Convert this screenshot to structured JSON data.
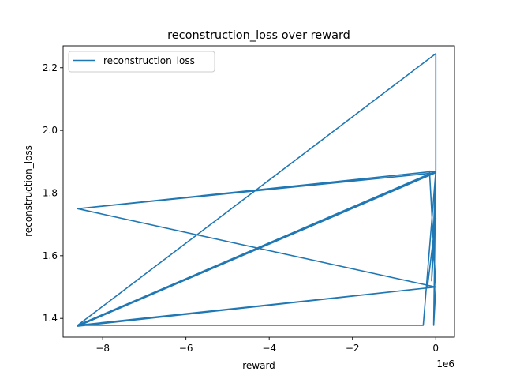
{
  "chart_data": {
    "type": "line",
    "title": "reconstruction_loss over reward",
    "xlabel": "reward",
    "ylabel": "reconstruction_loss",
    "x_offset_label": "1e6",
    "xlim": [
      -8.95,
      0.45
    ],
    "ylim": [
      1.34,
      2.27
    ],
    "xticks": [
      -8,
      -6,
      -4,
      -2,
      0
    ],
    "xtick_labels": [
      "−8",
      "−6",
      "−4",
      "−2",
      "0"
    ],
    "yticks": [
      1.4,
      1.6,
      1.8,
      2.0,
      2.2
    ],
    "ytick_labels": [
      "1.4",
      "1.6",
      "1.8",
      "2.0",
      "2.2"
    ],
    "legend": {
      "position": "top-left",
      "entries": [
        "reconstruction_loss"
      ]
    },
    "series": [
      {
        "name": "reconstruction_loss",
        "color": "#1f77b4",
        "x": [
          0.0,
          -8.6,
          0.0,
          -8.6,
          0.0,
          -8.6,
          0.0,
          -8.6,
          0.0,
          -8.6,
          -0.3,
          0.0,
          -8.6,
          0.0,
          -0.05,
          0.0,
          -0.15,
          0.0,
          -8.6,
          0.0,
          -0.2,
          0.0,
          -0.1,
          0.0,
          0.0
        ],
        "y": [
          2.245,
          1.378,
          1.87,
          1.378,
          1.868,
          1.378,
          1.865,
          1.375,
          1.5,
          1.378,
          1.378,
          1.87,
          1.75,
          1.87,
          1.378,
          1.5,
          1.87,
          1.865,
          1.75,
          1.5,
          1.5,
          1.72,
          1.52,
          1.87,
          2.245
        ]
      }
    ]
  }
}
